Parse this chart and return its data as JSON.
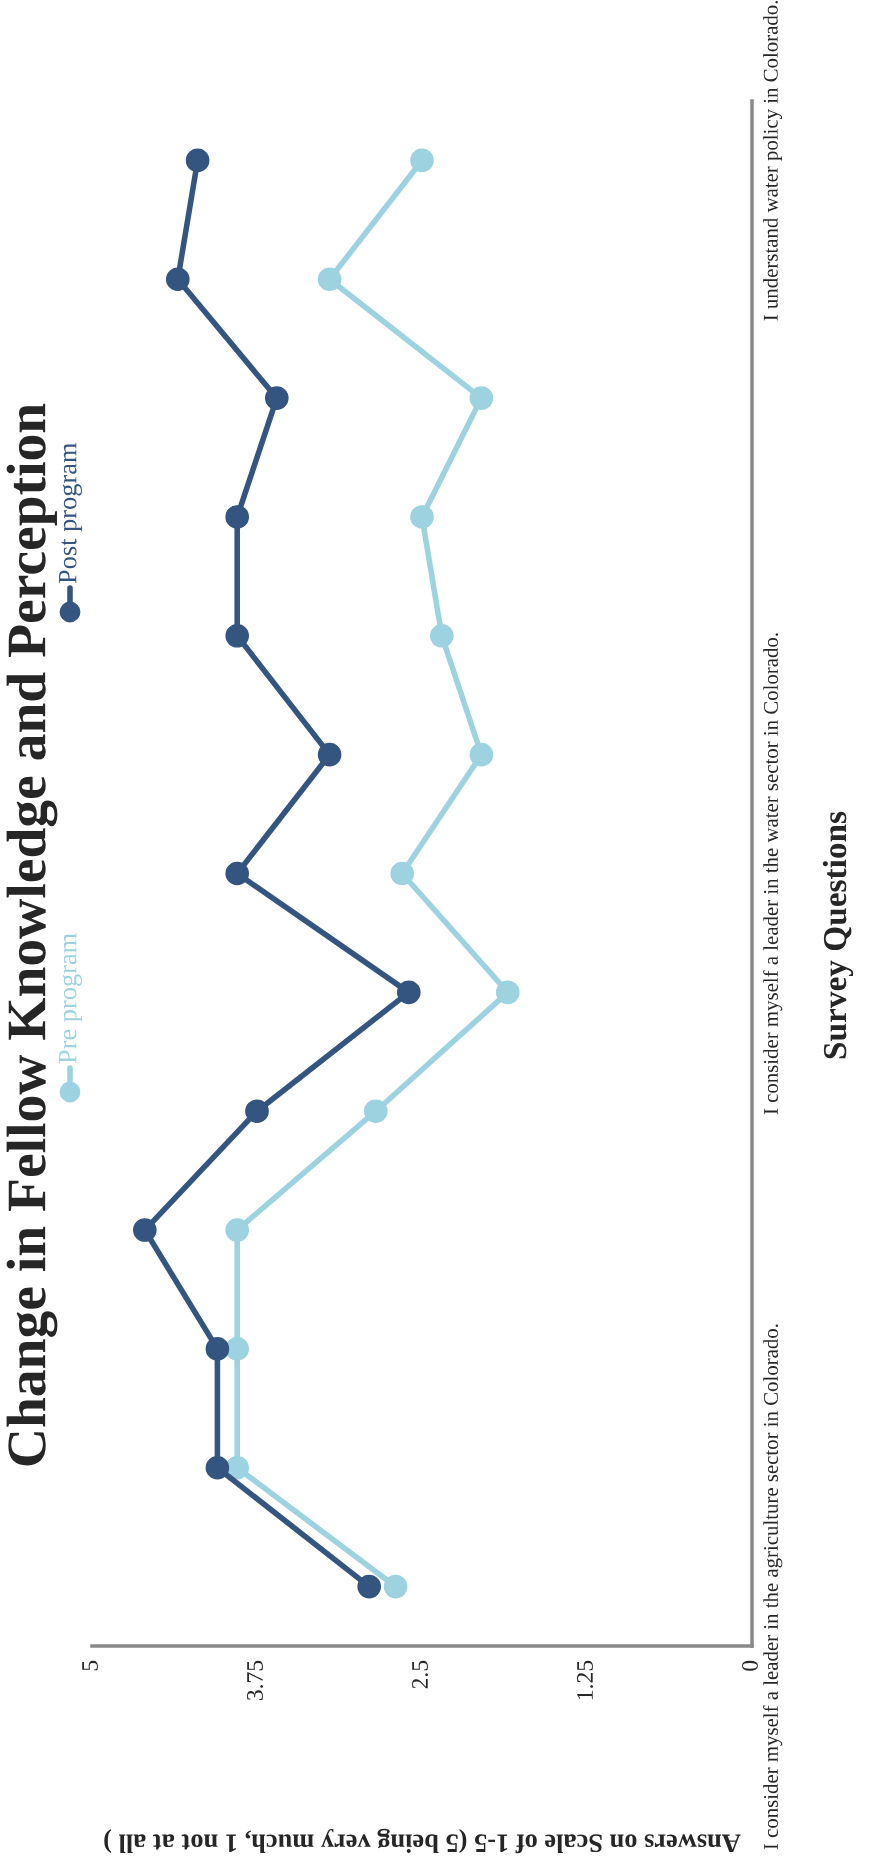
{
  "chart_data": {
    "type": "line",
    "orientation": "horizontal",
    "title": "Change in Fellow Knowledge and Perception",
    "ylabel": "Survey Questions",
    "xlabel": "Answers on Scale of 1-5 (5 being very much, 1 not at all )",
    "categories": [
      "I understand water policy in Colorado.",
      null,
      null,
      null,
      null,
      null,
      "I consider myself a leader in the water sector in Colorado.",
      null,
      null,
      null,
      null,
      null,
      "I consider myself a leader in the agriculture sector in Colorado."
    ],
    "series": [
      {
        "name": "Pre program",
        "color": "#9dd2e0",
        "values": [
          2.5,
          3.2,
          2.05,
          2.5,
          2.35,
          2.05,
          2.65,
          1.85,
          2.85,
          3.9,
          3.9,
          3.9,
          2.7
        ]
      },
      {
        "name": "Post program",
        "color": "#34557f",
        "values": [
          4.2,
          4.35,
          3.6,
          3.9,
          3.9,
          3.2,
          3.9,
          2.6,
          3.75,
          4.6,
          4.05,
          4.05,
          2.9
        ]
      }
    ],
    "xlim": [
      5,
      0
    ],
    "xticks": [
      5,
      3.75,
      2.5,
      1.25,
      0
    ],
    "grid": false,
    "legend": "top",
    "marker": "circle",
    "line_style": "solid"
  }
}
